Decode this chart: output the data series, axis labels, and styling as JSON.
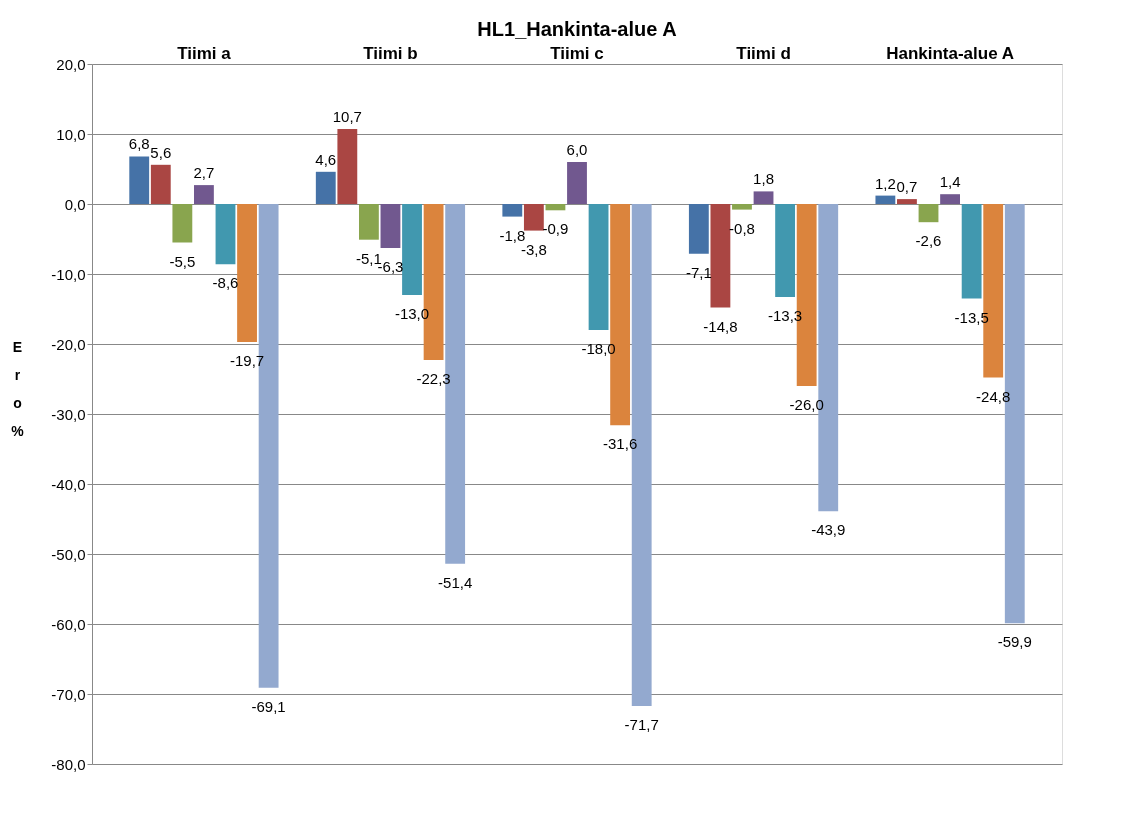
{
  "chart_data": {
    "type": "bar",
    "title": "HL1_Hankinta-alue A",
    "ylabel": "Ero %",
    "categories": [
      "Tiimi a",
      "Tiimi b",
      "Tiimi c",
      "Tiimi d",
      "Hankinta-alue A"
    ],
    "series": [
      {
        "color": "#4572a7",
        "values": [
          6.8,
          4.6,
          -1.8,
          -7.1,
          1.2
        ],
        "value_labels": [
          "6,8",
          "4,6",
          "-1,8",
          "-7,1",
          "1,2"
        ]
      },
      {
        "color": "#aa4643",
        "values": [
          5.6,
          10.7,
          -3.8,
          -14.8,
          0.7
        ],
        "value_labels": [
          "5,6",
          "10,7",
          "-3,8",
          "-14,8",
          "0,7"
        ]
      },
      {
        "color": "#89a54e",
        "values": [
          -5.5,
          -5.1,
          -0.9,
          -0.8,
          -2.6
        ],
        "value_labels": [
          "-5,5",
          "-5,1",
          "-0,9",
          "-0,8",
          "-2,6"
        ]
      },
      {
        "color": "#71588f",
        "values": [
          2.7,
          -6.3,
          6.0,
          1.8,
          1.4
        ],
        "value_labels": [
          "2,7",
          "-6,3",
          "6,0",
          "1,8",
          "1,4"
        ]
      },
      {
        "color": "#4198af",
        "values": [
          -8.6,
          -13.0,
          -18.0,
          -13.3,
          -13.5
        ],
        "value_labels": [
          "-8,6",
          "-13,0",
          "-18,0",
          "-13,3",
          "-13,5"
        ]
      },
      {
        "color": "#db843d",
        "values": [
          -19.7,
          -22.3,
          -31.6,
          -26.0,
          -24.8
        ],
        "value_labels": [
          "-19,7",
          "-22,3",
          "-31,6",
          "-26,0",
          "-24,8"
        ]
      },
      {
        "color": "#93a9cf",
        "values": [
          -69.1,
          -51.4,
          -71.7,
          -43.9,
          -59.9
        ],
        "value_labels": [
          "-69,1",
          "-51,4",
          "-71,7",
          "-43,9",
          "-59,9"
        ]
      }
    ],
    "ylim": [
      -80,
      20
    ],
    "yticks": [
      {
        "value": -80,
        "label": "-80,0"
      },
      {
        "value": -70,
        "label": "-70,0"
      },
      {
        "value": -60,
        "label": "-60,0"
      },
      {
        "value": -50,
        "label": "-50,0"
      },
      {
        "value": -40,
        "label": "-40,0"
      },
      {
        "value": -30,
        "label": "-30,0"
      },
      {
        "value": -20,
        "label": "-20,0"
      },
      {
        "value": -10,
        "label": "-10,0"
      },
      {
        "value": 0,
        "label": "0,0"
      },
      {
        "value": 10,
        "label": "10,0"
      },
      {
        "value": 20,
        "label": "20,0"
      }
    ],
    "grid": "y",
    "legend": false
  }
}
